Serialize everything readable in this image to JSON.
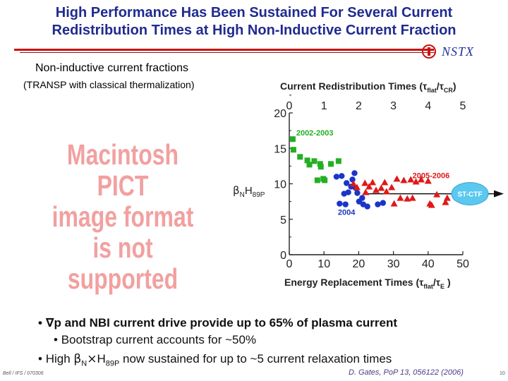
{
  "slide": {
    "title_line1": "High Performance Has Been Sustained For Several Current",
    "title_line2": "Redistribution Times at High Non-Inductive Current Fraction",
    "logo_text": "NSTX",
    "subhead": "Non-inductive current fractions",
    "subnote": "(TRANSP with classical thermalization)",
    "placeholder_lines": [
      "Macintosh PICT",
      "image format",
      "is not supported"
    ],
    "bullets": {
      "b1_bullet": "•",
      "b1_sym": "∇",
      "b1_text": "p and NBI current drive provide up to 65% of plasma current",
      "b2_bullet": "•",
      "b2_text": "Bootstrap current accounts for ~50%",
      "b3_bullet": "•",
      "b3_pre": "High ",
      "b3_sym": "β",
      "b3_n": "N",
      "b3_times": "×",
      "b3_h": "H",
      "b3_sub": "89P",
      "b3_post": " now sustained for up to ~5 current relaxation times"
    },
    "footer_left": "Bell / IFS / 070306",
    "citation": "D. Gates, PoP 13, 056122 (2006)",
    "page": "10"
  },
  "chart_data": {
    "type": "scatter",
    "top_axis_label": "Current Redistribution Times (τ",
    "top_axis_sub1": "flat",
    "top_axis_mid": "/τ",
    "top_axis_sub2": "CR",
    "top_axis_end": ")",
    "top_ticks": [
      "0",
      "1",
      "2",
      "3",
      "4",
      "5"
    ],
    "top_tick_values": [
      0,
      10,
      20,
      30,
      40,
      50
    ],
    "xlabel": "Energy Replacement Times (τ",
    "xlabel_sub1": "flat",
    "xlabel_mid": "/τ",
    "xlabel_sub2": "E",
    "xlabel_end": " )",
    "x_ticks": [
      "0",
      "10",
      "20",
      "30",
      "40",
      "50"
    ],
    "y_ticks": [
      "0",
      "5",
      "10",
      "15",
      "20"
    ],
    "ylabel_beta": "β",
    "ylabel_n": "N",
    "ylabel_h": "H",
    "ylabel_sub": "89P",
    "xlim": [
      0,
      50
    ],
    "ylim": [
      0,
      20
    ],
    "series": [
      {
        "name": "2002-2003",
        "marker": "square",
        "color": "#22b022",
        "points": [
          [
            1.0,
            16.3
          ],
          [
            1.2,
            14.8
          ],
          [
            3.1,
            13.8
          ],
          [
            5.2,
            13.3
          ],
          [
            5.8,
            12.7
          ],
          [
            7.2,
            13.2
          ],
          [
            8.9,
            12.8
          ],
          [
            9.1,
            12.4
          ],
          [
            12.0,
            12.8
          ],
          [
            14.2,
            13.2
          ],
          [
            8.1,
            10.5
          ],
          [
            9.8,
            10.7
          ],
          [
            10.2,
            10.5
          ]
        ]
      },
      {
        "name": "2004",
        "marker": "circle",
        "color": "#1a35c8",
        "points": [
          [
            13.6,
            11.0
          ],
          [
            15.1,
            11.1
          ],
          [
            16.5,
            10.1
          ],
          [
            17.0,
            8.8
          ],
          [
            17.8,
            9.6
          ],
          [
            18.2,
            10.6
          ],
          [
            19.1,
            9.4
          ],
          [
            19.6,
            8.7
          ],
          [
            20.1,
            7.5
          ],
          [
            15.8,
            8.6
          ],
          [
            14.5,
            7.2
          ],
          [
            16.2,
            7.1
          ],
          [
            18.8,
            11.5
          ],
          [
            21.0,
            8.0
          ],
          [
            21.3,
            7.1
          ],
          [
            25.5,
            7.1
          ],
          [
            27.0,
            7.3
          ],
          [
            22.5,
            6.8
          ]
        ]
      },
      {
        "name": "2005-2006",
        "marker": "triangle",
        "color": "#e01818",
        "points": [
          [
            18.5,
            10.0
          ],
          [
            19.5,
            9.5
          ],
          [
            21.8,
            10.1
          ],
          [
            22.0,
            8.8
          ],
          [
            23.0,
            9.6
          ],
          [
            24.0,
            10.2
          ],
          [
            25.0,
            9.1
          ],
          [
            26.5,
            9.4
          ],
          [
            27.5,
            10.2
          ],
          [
            28.0,
            8.9
          ],
          [
            29.5,
            9.5
          ],
          [
            31.0,
            10.7
          ],
          [
            32.0,
            8.0
          ],
          [
            33.0,
            10.5
          ],
          [
            35.0,
            10.6
          ],
          [
            36.5,
            10.3
          ],
          [
            38.0,
            10.6
          ],
          [
            40.0,
            10.4
          ],
          [
            34.0,
            7.9
          ],
          [
            35.5,
            8.0
          ],
          [
            40.5,
            7.2
          ],
          [
            42.5,
            8.5
          ],
          [
            45.0,
            7.4
          ],
          [
            45.5,
            8.0
          ],
          [
            30.2,
            7.2
          ],
          [
            41.0,
            7.0
          ]
        ]
      }
    ],
    "annotations": [
      {
        "text": "2002-2003",
        "color": "#22b022",
        "x": 2,
        "y": 16.8
      },
      {
        "text": "2004",
        "color": "#1a35c8",
        "x": 14,
        "y": 5.6
      },
      {
        "text": "2005-2006",
        "color": "#e01818",
        "x": 35.5,
        "y": 10.8
      }
    ],
    "target_label": "ST-CTF",
    "target_colors": {
      "fill": "#5bc8f0",
      "arrow": "#111111"
    }
  }
}
